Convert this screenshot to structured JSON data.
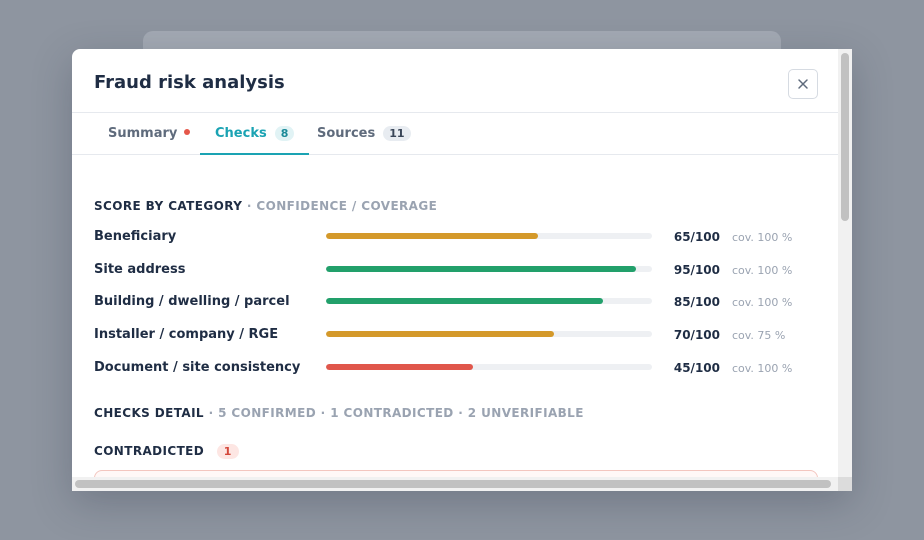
{
  "modal": {
    "title": "Fraud risk analysis",
    "close_icon": "close-icon"
  },
  "tabs": [
    {
      "label": "Summary",
      "indicator": "red-dot",
      "active": false
    },
    {
      "label": "Checks",
      "count": "8",
      "active": true
    },
    {
      "label": "Sources",
      "count": "11",
      "active": false
    }
  ],
  "score_section": {
    "heading": "SCORE BY CATEGORY",
    "subheading": "· CONFIDENCE / COVERAGE",
    "rows": [
      {
        "label": "Beneficiary",
        "score": "65/100",
        "value": 65,
        "coverage": "cov. 100 %",
        "color": "#d4992a"
      },
      {
        "label": "Site address",
        "score": "95/100",
        "value": 95,
        "coverage": "cov. 100 %",
        "color": "#22a06b"
      },
      {
        "label": "Building / dwelling / parcel",
        "score": "85/100",
        "value": 85,
        "coverage": "cov. 100 %",
        "color": "#22a06b"
      },
      {
        "label": "Installer / company / RGE",
        "score": "70/100",
        "value": 70,
        "coverage": "cov. 75 %",
        "color": "#d4992a"
      },
      {
        "label": "Document / site consistency",
        "score": "45/100",
        "value": 45,
        "coverage": "cov. 100 %",
        "color": "#e0564b"
      }
    ]
  },
  "checks_section": {
    "heading": "CHECKS DETAIL",
    "subheading": "· 5 CONFIRMED · 1 CONTRADICTED · 2 UNVERIFIABLE"
  },
  "contradicted": {
    "heading": "CONTRADICTED",
    "count": "1"
  }
}
